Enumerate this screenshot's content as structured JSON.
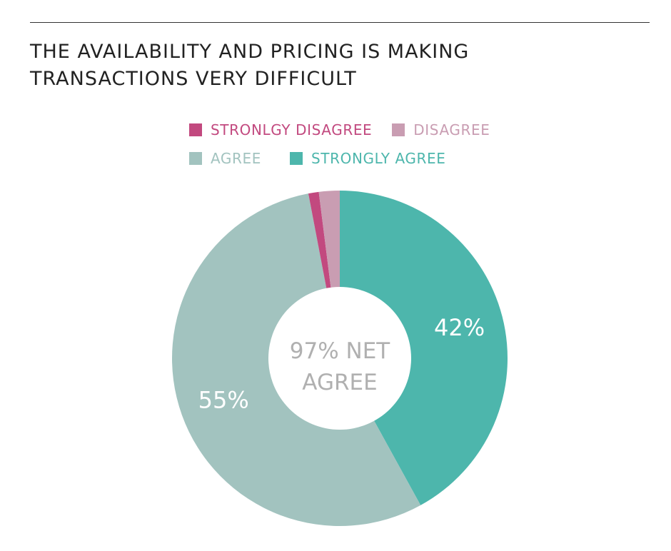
{
  "title": "THE AVAILABILITY AND PRICING IS MAKING\nTRANSACTIONS VERY DIFFICULT",
  "center_label": [
    "97% NET",
    "AGREE"
  ],
  "chart_data": {
    "type": "pie",
    "title": "THE AVAILABILITY AND PRICING IS MAKING TRANSACTIONS VERY DIFFICULT",
    "categories": [
      "STRONGLY AGREE",
      "AGREE",
      "STRONLGY DISAGREE",
      "DISAGREE"
    ],
    "values": [
      42,
      55,
      1,
      2
    ],
    "colors": [
      "#4db6ac",
      "#a2c3bf",
      "#c2497f",
      "#c99db2"
    ],
    "value_labels": [
      "42%",
      "55%",
      "",
      ""
    ],
    "legend": [
      {
        "label": "STRONLGY DISAGREE",
        "color": "#c2497f"
      },
      {
        "label": "DISAGREE",
        "color": "#c99db2"
      },
      {
        "label": "AGREE",
        "color": "#a2c3bf"
      },
      {
        "label": "STRONGLY AGREE",
        "color": "#4db6ac"
      }
    ],
    "legend_placement": "top-center",
    "donut": true
  }
}
